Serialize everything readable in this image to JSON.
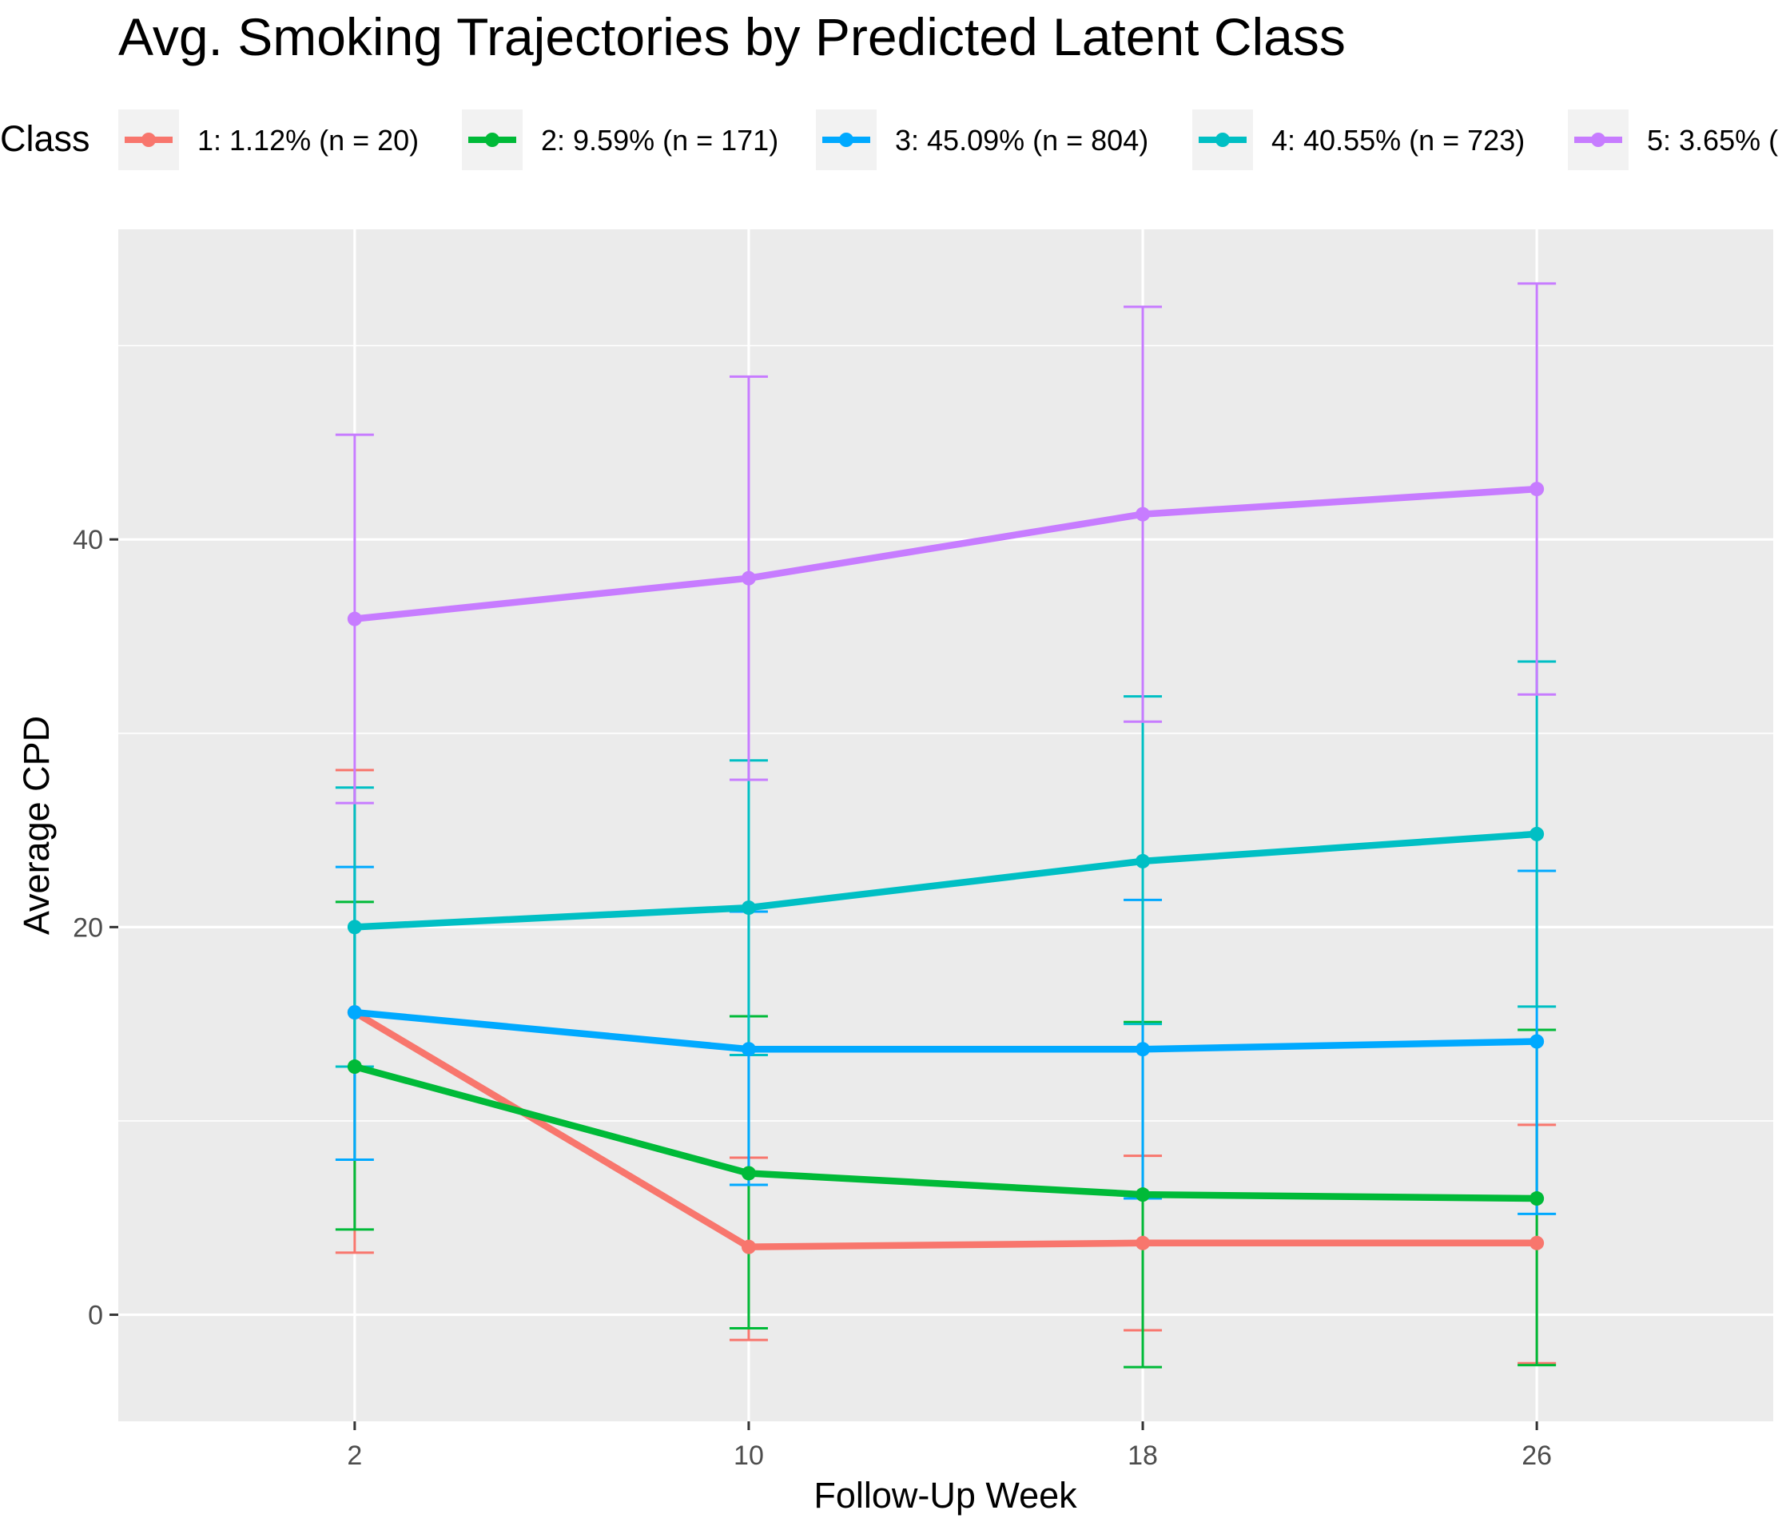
{
  "chart_data": {
    "type": "line",
    "title": "Avg. Smoking Trajectories by Predicted Latent Class",
    "xlabel": "Follow-Up Week",
    "ylabel": "Average CPD",
    "x": [
      2,
      10,
      18,
      26
    ],
    "x_tick_labels": [
      "2",
      "10",
      "18",
      "26"
    ],
    "xlim": [
      -2.8,
      30.8
    ],
    "y_ticks": [
      0,
      20,
      40
    ],
    "y_tick_labels": [
      "0",
      "20",
      "40"
    ],
    "ylim": [
      -5.5,
      56
    ],
    "grid": true,
    "legend": {
      "title": "Class",
      "position": "top",
      "entries": [
        "1: 1.12% (n = 20)",
        "2: 9.59% (n = 171)",
        "3: 45.09% (n = 804)",
        "4: 40.55% (n = 723)",
        "5: 3.65% ("
      ]
    },
    "series": [
      {
        "name": "1: 1.12% (n = 20)",
        "color": "#F8766D",
        "values": [
          15.6,
          3.5,
          3.7,
          3.7
        ],
        "error_low": [
          3.2,
          -1.3,
          -0.8,
          -2.5
        ],
        "error_high": [
          28.1,
          8.1,
          8.2,
          9.8
        ]
      },
      {
        "name": "2: 9.59% (n = 171)",
        "color": "#00BA38",
        "values": [
          12.8,
          7.3,
          6.2,
          6.0
        ],
        "error_low": [
          4.4,
          -0.7,
          -2.7,
          -2.6
        ],
        "error_high": [
          21.3,
          15.4,
          15.1,
          14.7
        ]
      },
      {
        "name": "3: 45.09% (n = 804)",
        "color": "#00A9FF",
        "values": [
          15.6,
          13.7,
          13.7,
          14.1
        ],
        "error_low": [
          8.0,
          6.7,
          6.0,
          5.2
        ],
        "error_high": [
          23.1,
          20.8,
          21.4,
          22.9
        ]
      },
      {
        "name": "4: 40.55% (n = 723)",
        "color": "#00BFC4",
        "values": [
          20.0,
          21.0,
          23.4,
          24.8
        ],
        "error_low": [
          12.8,
          13.4,
          15.0,
          15.9
        ],
        "error_high": [
          27.2,
          28.6,
          31.9,
          33.7
        ]
      },
      {
        "name": "5: 3.65% (",
        "color": "#C77CFF",
        "values": [
          35.9,
          38.0,
          41.3,
          42.6
        ],
        "error_low": [
          26.4,
          27.6,
          30.6,
          32.0
        ],
        "error_high": [
          45.4,
          48.4,
          52.0,
          53.2
        ]
      }
    ]
  }
}
